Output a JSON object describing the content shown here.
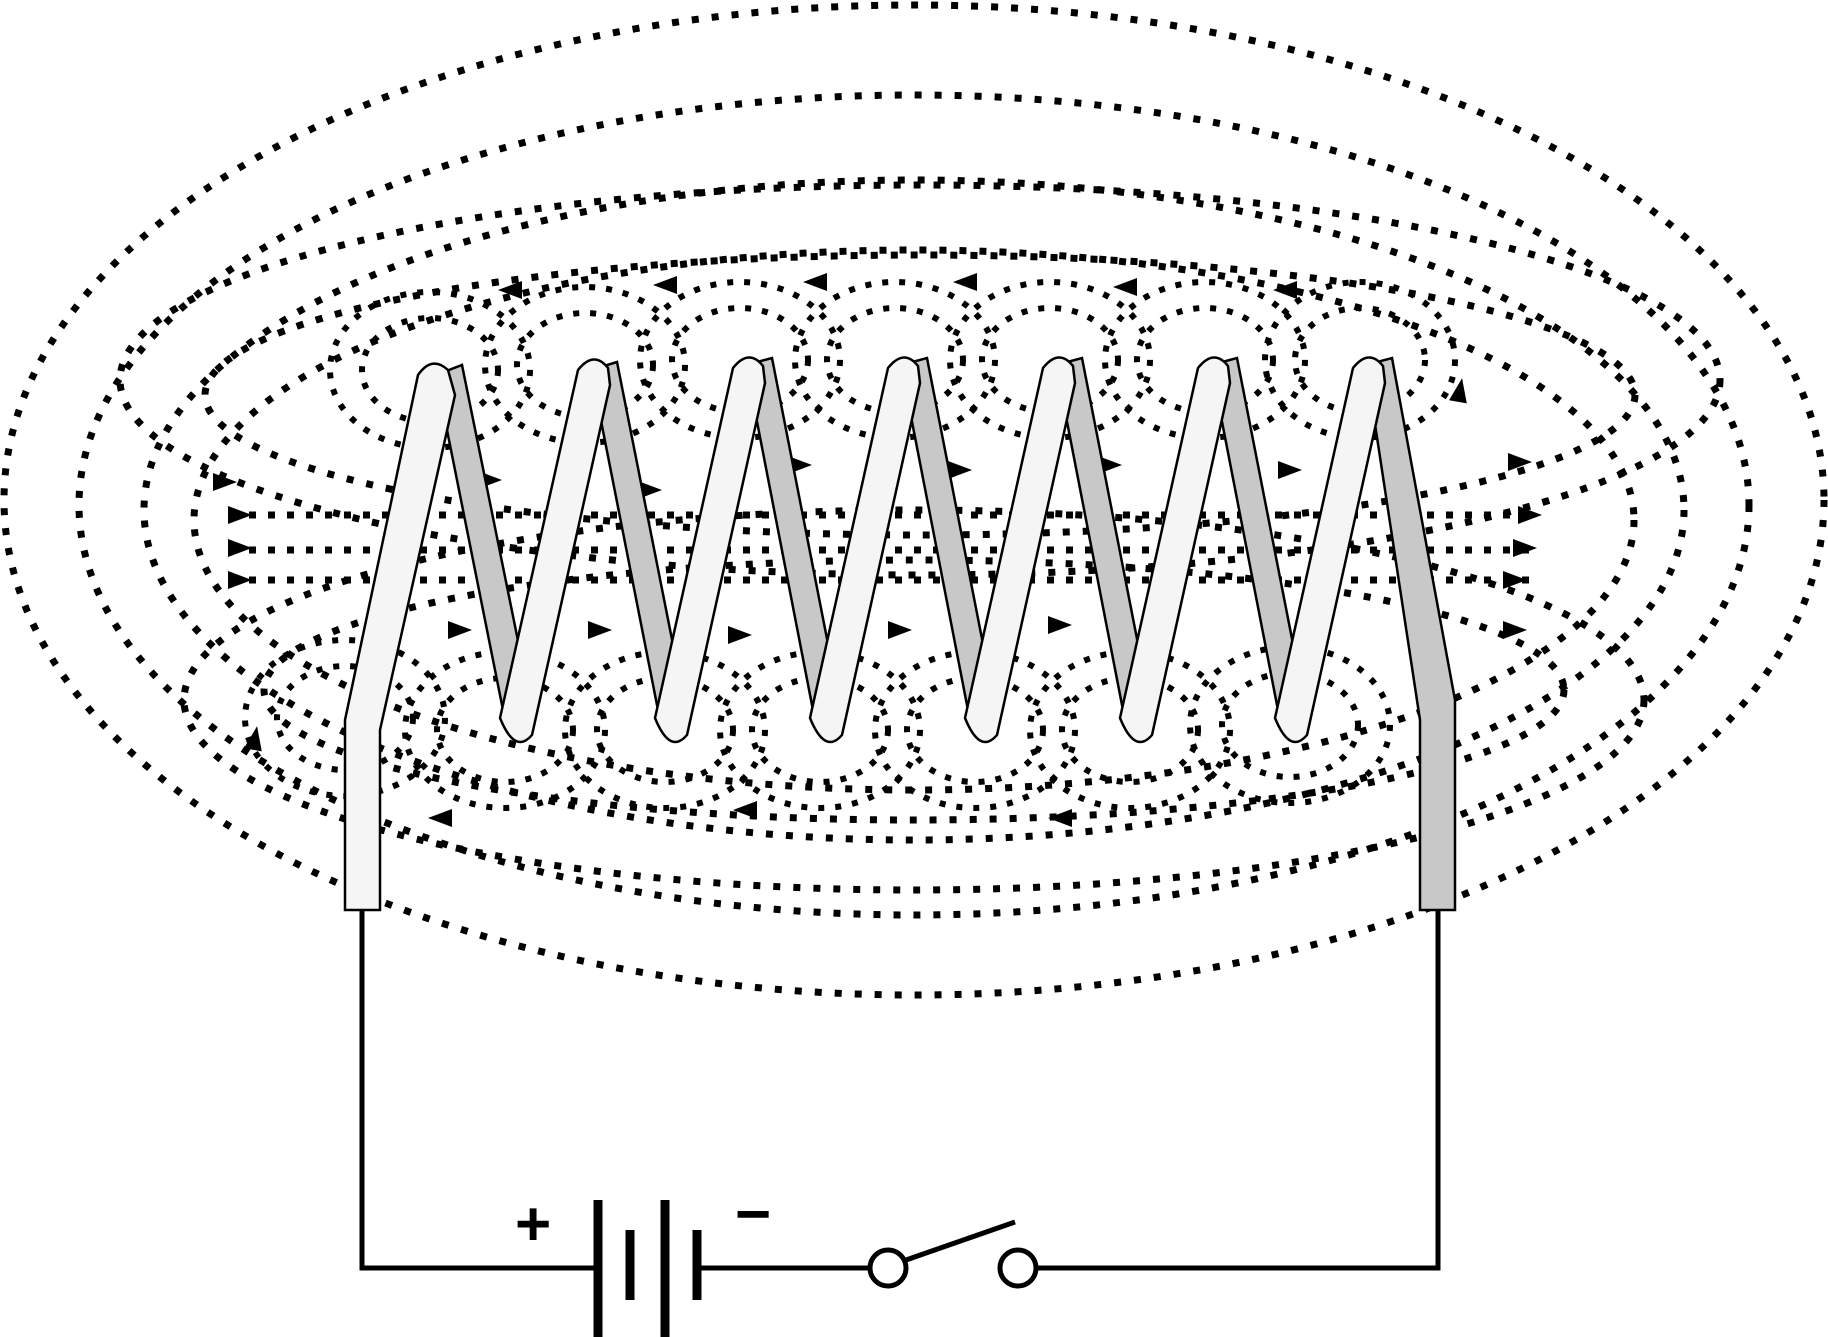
{
  "diagram": {
    "labels": {
      "positive": "+",
      "negative": "−"
    },
    "colors": {
      "background": "#ffffff",
      "line": "#000000",
      "coil_front": "#f5f5f5",
      "coil_back": "#c8c8c8"
    },
    "coil_turns": 7,
    "components": [
      "solenoid-coil",
      "battery",
      "switch",
      "magnetic-field-lines"
    ]
  }
}
